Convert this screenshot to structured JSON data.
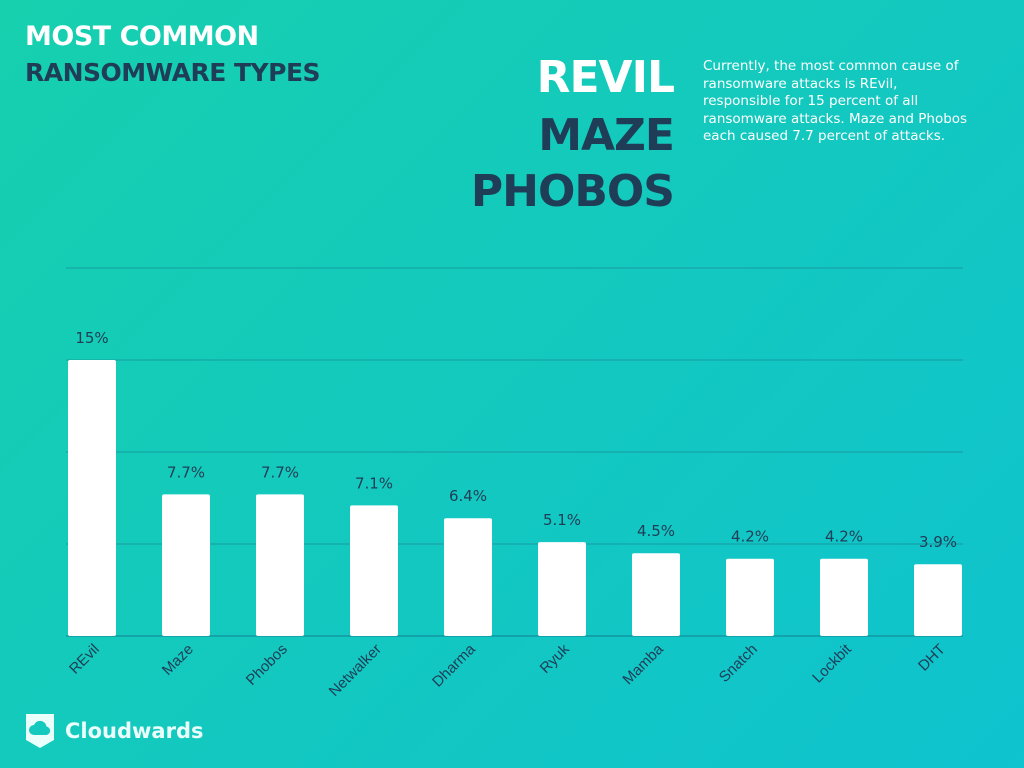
{
  "header": {
    "title_line1": "MOST COMMON",
    "title_line2": "RANSOMWARE TYPES"
  },
  "highlights": [
    "REVIL",
    "MAZE",
    "PHOBOS"
  ],
  "description": "Currently, the most common cause of ransomware attacks is REvil, responsible for 15 percent of all ransomware attacks. Maze and Phobos each caused 7.7 percent of attacks.",
  "brand": {
    "name": "Cloudwards",
    "icon": "cloud-shield-icon"
  },
  "colors": {
    "title_white": "#ffffff",
    "title_dark": "#1f3d56",
    "bar": "#ffffff",
    "gridline": "#1a8f9a"
  },
  "chart_data": {
    "type": "bar",
    "categories": [
      "REvil",
      "Maze",
      "Phobos",
      "Netwalker",
      "Dharma",
      "Ryuk",
      "Mamba",
      "Snatch",
      "Lockbit",
      "DHT"
    ],
    "values": [
      15,
      7.7,
      7.7,
      7.1,
      6.4,
      5.1,
      4.5,
      4.2,
      4.2,
      3.9
    ],
    "data_labels": [
      "15%",
      "7.7%",
      "7.7%",
      "7.1%",
      "6.4%",
      "5.1%",
      "4.5%",
      "4.2%",
      "4.2%",
      "3.9%"
    ],
    "ylim": [
      0,
      20
    ],
    "grid": true,
    "title": "",
    "xlabel": "",
    "ylabel": ""
  }
}
